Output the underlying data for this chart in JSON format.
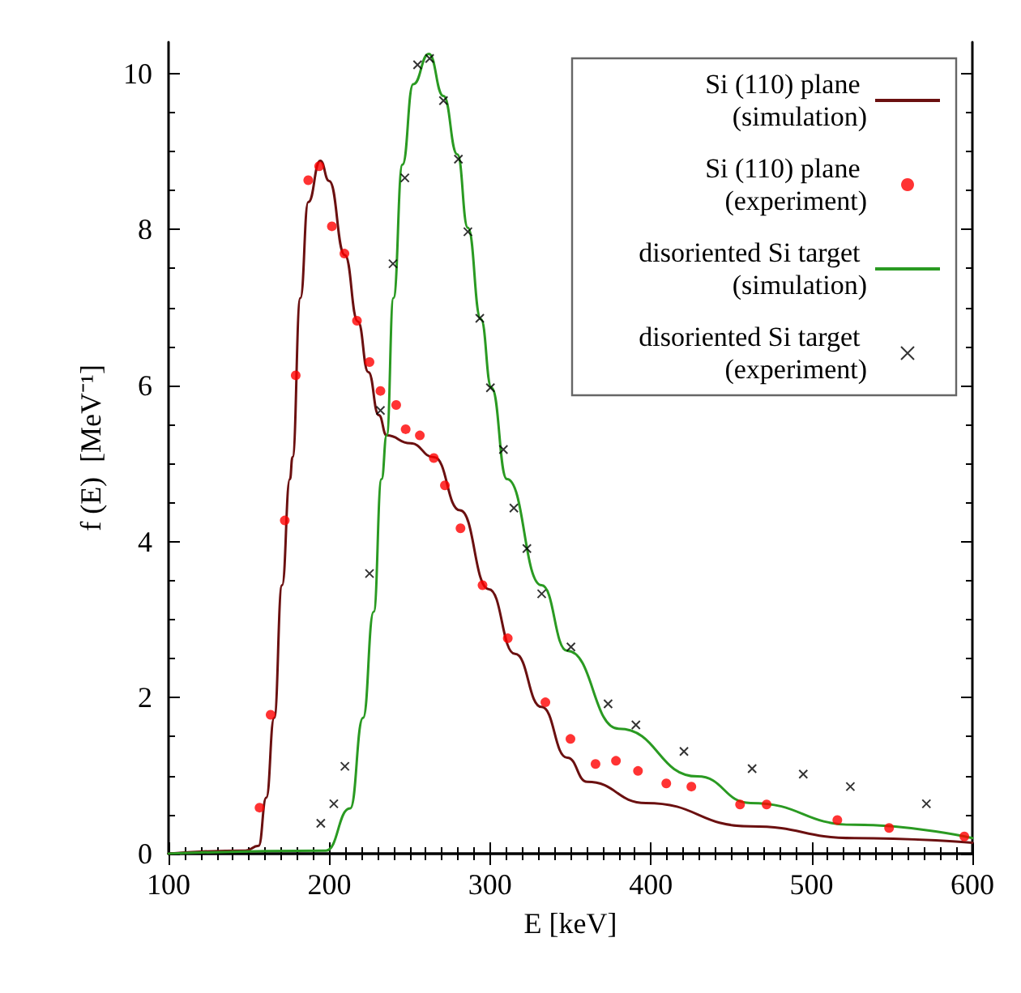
{
  "chart_data": {
    "type": "line",
    "xlabel": "E [keV]",
    "ylabel": "f (E)  [MeV⁻¹]",
    "xlim": [
      100,
      600
    ],
    "xticks": [
      100,
      200,
      300,
      400,
      500,
      600
    ],
    "ylim": [
      0,
      10.4
    ],
    "yticks": [
      0,
      2,
      4,
      6,
      8,
      10
    ],
    "grid": false,
    "legend": "top right",
    "series": [
      {
        "name": "Si (110) plane (simulation)",
        "marker": "none",
        "line_style": "solid",
        "color": "#6b1010",
        "x": [
          100,
          147.9,
          156,
          160.8,
          165.7,
          170.6,
          175.5,
          177.1,
          182,
          186.9,
          194.4,
          199.9,
          209.7,
          217.8,
          224.3,
          230.8,
          235.7,
          250.4,
          265.2,
          281.3,
          299.2,
          315.5,
          332,
          348,
          360.4,
          396.9,
          462,
          526.8,
          600
        ],
        "values": [
          0,
          0.04,
          0.1,
          0.72,
          1.74,
          3.44,
          4.8,
          5.08,
          7.12,
          8.35,
          8.88,
          8.62,
          7.67,
          6.82,
          6.17,
          5.62,
          5.36,
          5.26,
          5.08,
          4.4,
          3.39,
          2.56,
          1.88,
          1.23,
          0.92,
          0.65,
          0.35,
          0.2,
          0.14
        ]
      },
      {
        "name": "Si (110) plane (experiment)",
        "type": "scatter",
        "marker": "circle",
        "color": "#ff0000",
        "x": [
          156.6,
          163.5,
          172.3,
          179.1,
          186.9,
          193.7,
          201.6,
          209.4,
          217.2,
          225,
          231.8,
          241.6,
          247.5,
          256.3,
          265,
          271.9,
          281.6,
          295.3,
          311,
          334.4,
          350,
          365.6,
          378.3,
          392,
          409.6,
          425.2,
          455.5,
          472,
          516,
          548.2,
          595
        ],
        "values": [
          0.59,
          1.78,
          4.27,
          6.13,
          8.63,
          8.81,
          8.04,
          7.69,
          6.83,
          6.3,
          5.93,
          5.75,
          5.44,
          5.36,
          5.07,
          4.72,
          4.17,
          3.44,
          2.76,
          1.94,
          1.47,
          1.15,
          1.19,
          1.06,
          0.9,
          0.86,
          0.63,
          0.63,
          0.43,
          0.33,
          0.22
        ]
      },
      {
        "name": "disoriented Si target (simulation)",
        "marker": "none",
        "line_style": "solid",
        "color": "#2a9a22",
        "x": [
          100,
          198,
          213,
          221,
          227.6,
          232.5,
          235.7,
          239.9,
          245.5,
          252.2,
          261.9,
          271,
          279.7,
          286.2,
          294.3,
          300.9,
          310.5,
          332,
          348,
          380,
          429,
          462,
          526.8,
          600
        ],
        "values": [
          0,
          0.04,
          0.58,
          1.74,
          3.1,
          4.8,
          5.36,
          7.12,
          8.83,
          9.86,
          10.25,
          9.71,
          8.96,
          8.02,
          6.85,
          5.97,
          4.8,
          3.44,
          2.6,
          1.6,
          0.99,
          0.65,
          0.37,
          0.2
        ]
      },
      {
        "name": "disoriented Si target (experiment)",
        "type": "scatter",
        "marker": "cross",
        "color": "#000000",
        "x": [
          194.7,
          202.8,
          209.7,
          225,
          231.8,
          239.6,
          247,
          254.9,
          262.4,
          271,
          280.3,
          286.2,
          293.6,
          300.2,
          308.3,
          314.8,
          322.9,
          332.1,
          350.3,
          373.4,
          390.7,
          420.6,
          463,
          494.8,
          524.1,
          571.4
        ],
        "values": [
          0.39,
          0.64,
          1.12,
          3.59,
          5.68,
          7.56,
          8.66,
          10.11,
          10.19,
          9.65,
          8.9,
          7.97,
          6.86,
          5.97,
          5.18,
          4.43,
          3.91,
          3.33,
          2.65,
          1.92,
          1.65,
          1.31,
          1.09,
          1.02,
          0.86,
          0.64
        ]
      }
    ]
  }
}
